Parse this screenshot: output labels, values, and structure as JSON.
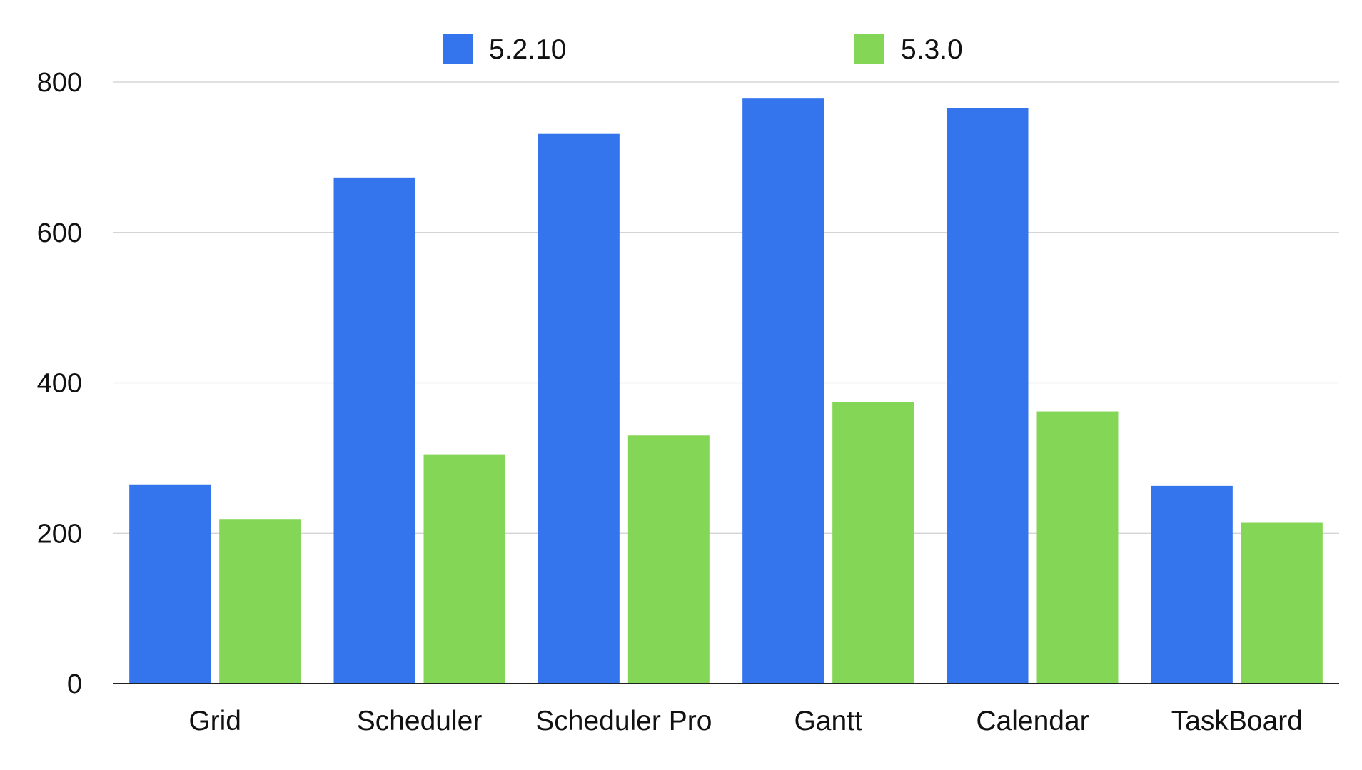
{
  "chart_data": {
    "type": "bar",
    "title": "",
    "xlabel": "",
    "ylabel": "",
    "ylim": [
      0,
      800
    ],
    "yticks": [
      0,
      200,
      400,
      600,
      800
    ],
    "grid": true,
    "legend": "top-center",
    "categories": [
      "Grid",
      "Scheduler",
      "Scheduler Pro",
      "Gantt",
      "Calendar",
      "TaskBoard"
    ],
    "series": [
      {
        "name": "5.2.10",
        "color": "#3474ED",
        "values": [
          265,
          673,
          731,
          778,
          765,
          263
        ]
      },
      {
        "name": "5.3.0",
        "color": "#84D656",
        "values": [
          219,
          305,
          330,
          374,
          362,
          214
        ]
      }
    ]
  }
}
